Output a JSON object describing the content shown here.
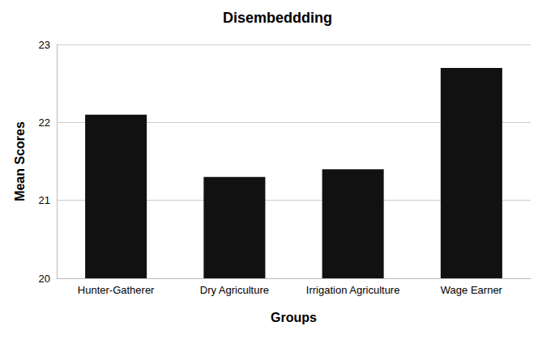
{
  "chart_data": {
    "type": "bar",
    "title": "Disembeddding",
    "x_label": "Groups",
    "y_label": "Mean Scores",
    "categories": [
      "Hunter-Gatherer",
      "Dry Agriculture",
      "Irrigation Agriculture",
      "Wage Earner"
    ],
    "values": [
      22.1,
      21.3,
      21.4,
      22.7
    ],
    "color": "#111111",
    "ylim": [
      20,
      23
    ],
    "yticks": [
      20,
      21,
      22,
      23
    ],
    "grid": true
  }
}
